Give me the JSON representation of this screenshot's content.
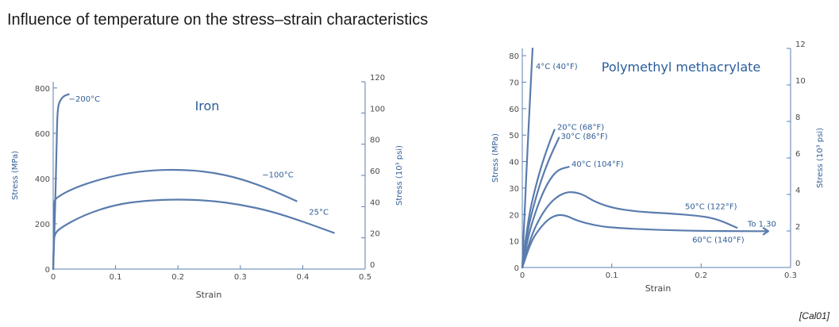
{
  "page": {
    "title": "Influence of temperature on the stress–strain characteristics",
    "reference": "[Cal01]"
  },
  "chart_data": [
    {
      "type": "line",
      "title": "Iron",
      "xlabel": "Strain",
      "ylabel": "Stress (MPa)",
      "y2label": "Stress (10³ psi)",
      "xlim": [
        0,
        0.5
      ],
      "ylim": [
        0,
        827.4
      ],
      "y2lim": [
        0,
        120
      ],
      "x_ticks": [
        0,
        0.1,
        0.2,
        0.3,
        0.4,
        0.5
      ],
      "x_tick_labels": [
        "0",
        "0.1",
        "0.2",
        "0.3",
        "0.4",
        "0.5"
      ],
      "y_ticks": [
        0,
        200,
        400,
        600,
        800
      ],
      "y_tick_labels": [
        "0",
        "200",
        "400",
        "600",
        "800"
      ],
      "y2_ticks": [
        0,
        20,
        40,
        60,
        80,
        100,
        120
      ],
      "y2_tick_labels": [
        "0",
        "20",
        "40",
        "60",
        "80",
        "100",
        "120"
      ],
      "grid": false,
      "series": [
        {
          "name": "−200°C",
          "label_at": [
            0.025,
            740
          ],
          "points": [
            [
              0,
              0
            ],
            [
              0.0035,
              300
            ],
            [
              0.0055,
              560
            ],
            [
              0.007,
              710
            ],
            [
              0.011,
              745
            ],
            [
              0.017,
              765
            ],
            [
              0.025,
              772
            ]
          ]
        },
        {
          "name": "−100°C",
          "label_at": [
            0.335,
            405
          ],
          "points": [
            [
              0,
              0
            ],
            [
              0.0012,
              150
            ],
            [
              0.0018,
              295
            ],
            [
              0.003,
              310
            ],
            [
              0.02,
              340
            ],
            [
              0.05,
              375
            ],
            [
              0.1,
              415
            ],
            [
              0.15,
              435
            ],
            [
              0.2,
              440
            ],
            [
              0.25,
              430
            ],
            [
              0.3,
              400
            ],
            [
              0.35,
              350
            ],
            [
              0.39,
              300
            ]
          ]
        },
        {
          "name": "25°C",
          "label_at": [
            0.41,
            240
          ],
          "points": [
            [
              0,
              0
            ],
            [
              0.0008,
              100
            ],
            [
              0.0015,
              150
            ],
            [
              0.01,
              180
            ],
            [
              0.05,
              240
            ],
            [
              0.1,
              285
            ],
            [
              0.15,
              303
            ],
            [
              0.2,
              308
            ],
            [
              0.25,
              303
            ],
            [
              0.3,
              285
            ],
            [
              0.35,
              255
            ],
            [
              0.4,
              210
            ],
            [
              0.45,
              160
            ]
          ]
        }
      ]
    },
    {
      "type": "line",
      "title": "Polymethyl methacrylate",
      "xlabel": "Strain",
      "ylabel": "Stress (MPa)",
      "y2label": "Stress (10³ psi)",
      "xlim": [
        0,
        0.3
      ],
      "ylim": [
        0,
        82.74
      ],
      "y2lim": [
        0,
        12
      ],
      "x_ticks": [
        0,
        0.1,
        0.2,
        0.3
      ],
      "x_tick_labels": [
        "0",
        "0.1",
        "0.2",
        "0.3"
      ],
      "y_ticks": [
        0,
        10,
        20,
        30,
        40,
        50,
        60,
        70,
        80
      ],
      "y_tick_labels": [
        "0",
        "10",
        "20",
        "30",
        "40",
        "50",
        "60",
        "70",
        "80"
      ],
      "y2_ticks": [
        0,
        2,
        4,
        6,
        8,
        10,
        12
      ],
      "y2_tick_labels": [
        "0",
        "2",
        "4",
        "6",
        "8",
        "10",
        "12"
      ],
      "grid": false,
      "series": [
        {
          "name": "4°C (40°F)",
          "label_at": [
            0.015,
            75
          ],
          "points": [
            [
              0,
              0
            ],
            [
              0.003,
              24
            ],
            [
              0.006,
              46
            ],
            [
              0.009,
              66
            ],
            [
              0.0115,
              82.7
            ]
          ]
        },
        {
          "name": "20°C (68°F)",
          "label_at": [
            0.039,
            52
          ],
          "points": [
            [
              0,
              0
            ],
            [
              0.005,
              14
            ],
            [
              0.01,
              24
            ],
            [
              0.02,
              37
            ],
            [
              0.03,
              47
            ],
            [
              0.036,
              52
            ]
          ]
        },
        {
          "name": "30°C (86°F)",
          "label_at": [
            0.043,
            48.5
          ],
          "points": [
            [
              0,
              0
            ],
            [
              0.005,
              12
            ],
            [
              0.01,
              20
            ],
            [
              0.02,
              32
            ],
            [
              0.03,
              41
            ],
            [
              0.041,
              49
            ]
          ]
        },
        {
          "name": "40°C (104°F)",
          "label_at": [
            0.055,
            38
          ],
          "points": [
            [
              0,
              0
            ],
            [
              0.005,
              9
            ],
            [
              0.01,
              16
            ],
            [
              0.02,
              26
            ],
            [
              0.03,
              33
            ],
            [
              0.04,
              37
            ],
            [
              0.052,
              38
            ]
          ]
        },
        {
          "name": "50°C (122°F)",
          "label_at": [
            0.182,
            22
          ],
          "points": [
            [
              0,
              0
            ],
            [
              0.01,
              12
            ],
            [
              0.02,
              19
            ],
            [
              0.03,
              24
            ],
            [
              0.04,
              27
            ],
            [
              0.05,
              28.5
            ],
            [
              0.06,
              28.4
            ],
            [
              0.07,
              27.2
            ],
            [
              0.08,
              25
            ],
            [
              0.1,
              22.5
            ],
            [
              0.13,
              21
            ],
            [
              0.16,
              20.5
            ],
            [
              0.2,
              19.5
            ],
            [
              0.22,
              18
            ],
            [
              0.24,
              15
            ]
          ]
        },
        {
          "name": "60°C (140°F)",
          "label_at": [
            0.19,
            9.5
          ],
          "points": [
            [
              0,
              0
            ],
            [
              0.01,
              10
            ],
            [
              0.02,
              15
            ],
            [
              0.03,
              18.5
            ],
            [
              0.04,
              20
            ],
            [
              0.05,
              19.5
            ],
            [
              0.06,
              17.8
            ],
            [
              0.08,
              16
            ],
            [
              0.1,
              15
            ],
            [
              0.15,
              14.2
            ],
            [
              0.2,
              13.8
            ],
            [
              0.25,
              13.7
            ],
            [
              0.275,
              13.7
            ]
          ]
        }
      ],
      "annotations": [
        {
          "text": "To 1.30",
          "at": [
            0.252,
            15.5
          ]
        }
      ]
    }
  ]
}
